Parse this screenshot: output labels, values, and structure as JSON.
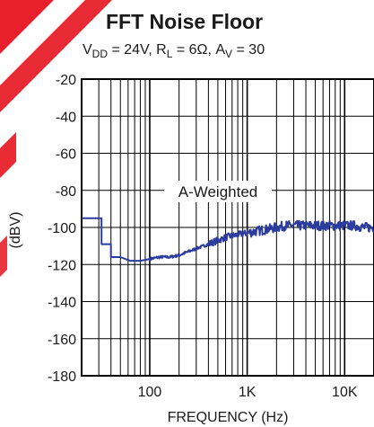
{
  "chart_data": {
    "type": "line",
    "title": "FFT Noise Floor",
    "subtitle": {
      "vdd_label": "V",
      "vdd_sub": "DD",
      "vdd_value": " = 24V, R",
      "rl_sub": "L",
      "rl_value": " = 6Ω, A",
      "av_sub": "V",
      "av_value": " = 30"
    },
    "xlabel": "FREQUENCY (Hz)",
    "ylabel": "(dBV)",
    "x_scale": "log",
    "xlim": [
      20,
      20000
    ],
    "ylim": [
      -180,
      -20
    ],
    "yticks": [
      -20,
      -40,
      -60,
      -80,
      -100,
      -120,
      -140,
      -160,
      -180
    ],
    "xticks": [
      {
        "value": 100,
        "label": "100"
      },
      {
        "value": 1000,
        "label": "1K"
      },
      {
        "value": 10000,
        "label": "10K"
      }
    ],
    "grid": true,
    "annotation": "A-Weighted",
    "series": [
      {
        "color": "#2b3c9e",
        "x": [
          20,
          25,
          32,
          32,
          40,
          40,
          50,
          63,
          80,
          100,
          125,
          160,
          200,
          250,
          315,
          400,
          500,
          630,
          800,
          1000,
          1250,
          1600,
          2000,
          2500,
          3150,
          4000,
          5000,
          6300,
          8000,
          10000,
          12500,
          16000,
          20000
        ],
        "values": [
          -95,
          -95,
          -95,
          -109,
          -109,
          -116,
          -116,
          -118,
          -118,
          -117,
          -116,
          -116,
          -115,
          -113,
          -111,
          -109,
          -107,
          -105,
          -104,
          -103,
          -102,
          -101,
          -100,
          -99,
          -99,
          -99,
          -99,
          -99,
          -99,
          -99,
          -99,
          -100,
          -100
        ]
      }
    ]
  },
  "colors": {
    "line": "#2b3c9e",
    "grid": "#000000",
    "watermark": "#e8202a"
  }
}
